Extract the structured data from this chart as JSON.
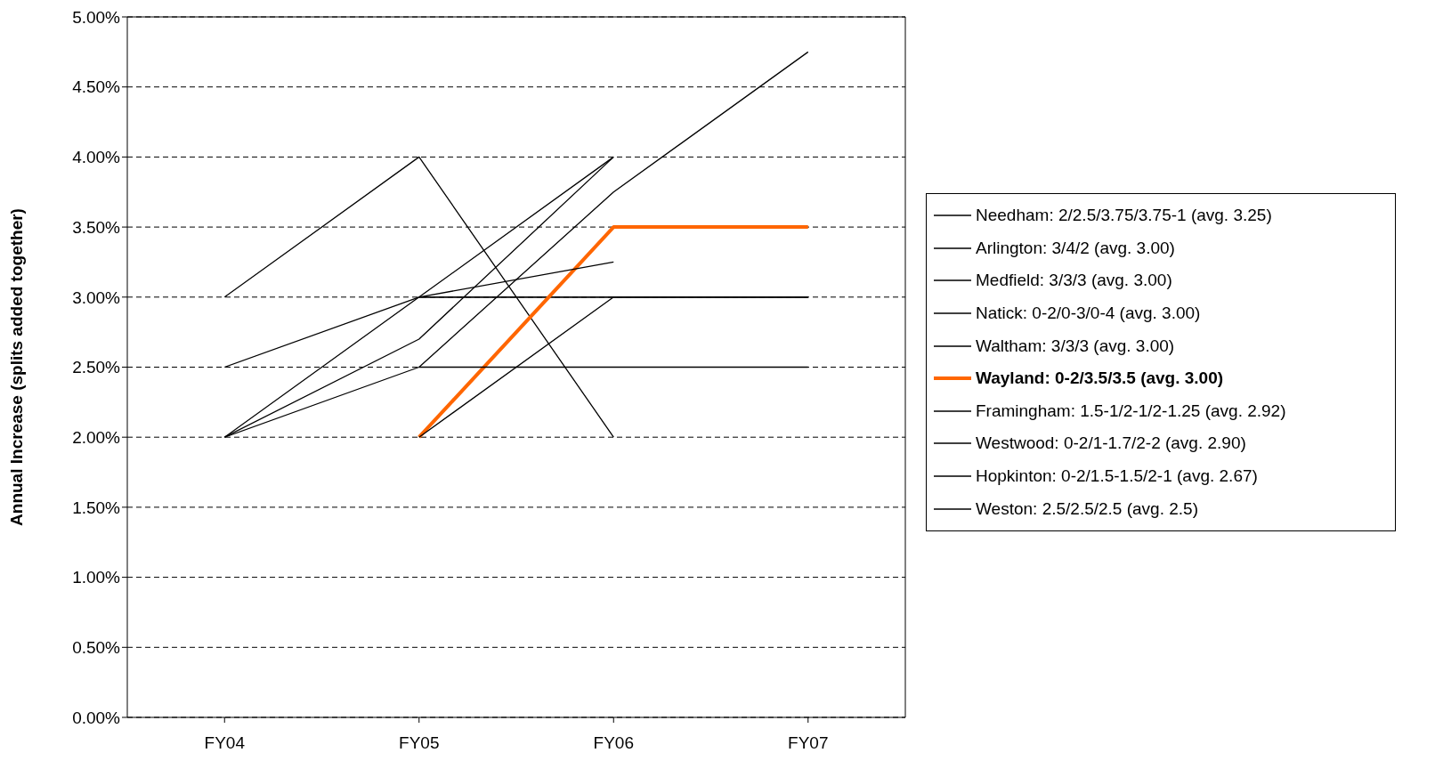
{
  "chart_data": {
    "type": "line",
    "ylabel": "Annual Increase (splits added together)",
    "categories": [
      "FY04",
      "FY05",
      "FY06",
      "FY07"
    ],
    "series": [
      {
        "name": "Needham: 2/2.5/3.75/3.75-1 (avg. 3.25)",
        "color": "#000000",
        "values": [
          2,
          2.5,
          3.75,
          4.75
        ]
      },
      {
        "name": "Arlington: 3/4/2 (avg. 3.00)",
        "color": "#000000",
        "values": [
          3,
          4,
          2,
          null
        ]
      },
      {
        "name": "Medfield: 3/3/3 (avg. 3.00)",
        "color": "#000000",
        "values": [
          null,
          3,
          3,
          3
        ]
      },
      {
        "name": "Natick: 0-2/0-3/0-4 (avg. 3.00)",
        "color": "#000000",
        "values": [
          2,
          3,
          4,
          null
        ]
      },
      {
        "name": "Waltham: 3/3/3 (avg. 3.00)",
        "color": "#000000",
        "values": [
          null,
          3,
          3,
          3
        ]
      },
      {
        "name": "Wayland: 0-2/3.5/3.5 (avg. 3.00)",
        "color": "#ff6600",
        "values": [
          null,
          2,
          3.5,
          3.5
        ]
      },
      {
        "name": "Framingham: 1.5-1/2-1/2-1.25 (avg. 2.92)",
        "color": "#000000",
        "values": [
          2.5,
          3,
          3.25,
          null
        ]
      },
      {
        "name": "Westwood: 0-2/1-1.7/2-2 (avg. 2.90)",
        "color": "#000000",
        "values": [
          2,
          2.7,
          4,
          null
        ]
      },
      {
        "name": "Hopkinton: 0-2/1.5-1.5/2-1 (avg. 2.67)",
        "color": "#000000",
        "values": [
          null,
          2,
          3,
          3
        ]
      },
      {
        "name": "Weston: 2.5/2.5/2.5 (avg. 2.5)",
        "color": "#000000",
        "values": [
          null,
          2.5,
          2.5,
          2.5
        ]
      }
    ],
    "ylim": [
      0,
      5
    ],
    "yticks": [
      {
        "value": 0,
        "label": "0.00%"
      },
      {
        "value": 0.5,
        "label": "0.50%"
      },
      {
        "value": 1,
        "label": "1.00%"
      },
      {
        "value": 1.5,
        "label": "1.50%"
      },
      {
        "value": 2,
        "label": "2.00%"
      },
      {
        "value": 2.5,
        "label": "2.50%"
      },
      {
        "value": 3,
        "label": "3.00%"
      },
      {
        "value": 3.5,
        "label": "3.50%"
      },
      {
        "value": 4,
        "label": "4.00%"
      },
      {
        "value": 4.5,
        "label": "4.50%"
      },
      {
        "value": 5,
        "label": "5.00%"
      }
    ],
    "grid": "y",
    "legend": "right",
    "marker": "none",
    "line_style": "solid"
  }
}
